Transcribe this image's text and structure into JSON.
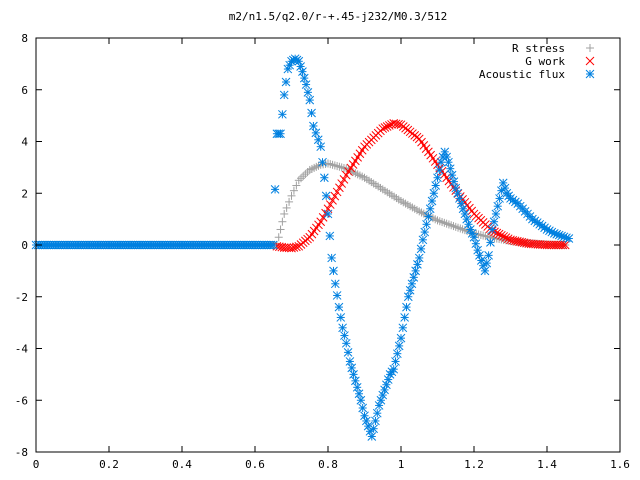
{
  "chart_data": {
    "type": "scatter",
    "title": "m2/n1.5/q2.0/r-+.45-j232/M0.3/512",
    "xlabel": "",
    "ylabel": "",
    "xlim": [
      0,
      1.6
    ],
    "ylim": [
      -8,
      8
    ],
    "xticks": [
      "0",
      "0.2",
      "0.4",
      "0.6",
      "0.8",
      "1",
      "1.2",
      "1.4",
      "1.6"
    ],
    "yticks": [
      "-8",
      "-6",
      "-4",
      "-2",
      "0",
      "2",
      "4",
      "6",
      "8"
    ],
    "grid": false,
    "legend_position": "top-right",
    "series": [
      {
        "name": "R stress",
        "marker": "plus",
        "color": "#a0a0a0",
        "x": [
          0.0,
          0.2,
          0.4,
          0.6,
          0.66,
          0.67,
          0.68,
          0.7,
          0.72,
          0.75,
          0.78,
          0.8,
          0.85,
          0.9,
          0.95,
          1.0,
          1.05,
          1.1,
          1.15,
          1.2,
          1.25,
          1.3,
          1.35,
          1.4,
          1.45
        ],
        "y": [
          0,
          0,
          0,
          0,
          0.0,
          0.6,
          1.2,
          1.9,
          2.5,
          2.9,
          3.1,
          3.15,
          2.95,
          2.6,
          2.15,
          1.7,
          1.3,
          0.95,
          0.7,
          0.45,
          0.28,
          0.15,
          0.07,
          0.02,
          0.0
        ]
      },
      {
        "name": "G work",
        "marker": "cross",
        "color": "#ff0000",
        "x": [
          0.66,
          0.68,
          0.7,
          0.72,
          0.75,
          0.78,
          0.8,
          0.85,
          0.9,
          0.95,
          0.98,
          1.0,
          1.05,
          1.1,
          1.15,
          1.2,
          1.25,
          1.3,
          1.35,
          1.4,
          1.45
        ],
        "y": [
          -0.05,
          -0.1,
          -0.12,
          -0.05,
          0.3,
          0.9,
          1.4,
          2.7,
          3.8,
          4.5,
          4.7,
          4.65,
          4.1,
          3.1,
          2.1,
          1.2,
          0.55,
          0.2,
          0.05,
          0.0,
          0.0
        ]
      },
      {
        "name": "Acoustic flux",
        "marker": "star",
        "color": "#0080e0",
        "x": [
          0.0,
          0.2,
          0.4,
          0.6,
          0.65,
          0.66,
          0.67,
          0.68,
          0.69,
          0.7,
          0.71,
          0.72,
          0.73,
          0.74,
          0.75,
          0.76,
          0.78,
          0.79,
          0.8,
          0.81,
          0.82,
          0.83,
          0.84,
          0.85,
          0.86,
          0.87,
          0.88,
          0.89,
          0.9,
          0.91,
          0.92,
          0.93,
          0.94,
          0.95,
          0.96,
          0.97,
          0.98,
          0.99,
          1.0,
          1.01,
          1.02,
          1.03,
          1.04,
          1.05,
          1.06,
          1.07,
          1.08,
          1.09,
          1.1,
          1.11,
          1.12,
          1.13,
          1.14,
          1.15,
          1.16,
          1.17,
          1.18,
          1.19,
          1.2,
          1.21,
          1.22,
          1.23,
          1.24,
          1.25,
          1.26,
          1.27,
          1.28,
          1.29,
          1.3,
          1.32,
          1.34,
          1.36,
          1.38,
          1.4,
          1.42,
          1.44,
          1.46
        ],
        "y": [
          0,
          0,
          0,
          0,
          0,
          4.3,
          4.3,
          5.8,
          6.8,
          7.1,
          7.2,
          7.1,
          6.7,
          6.2,
          5.6,
          4.6,
          3.8,
          2.6,
          1.2,
          -0.5,
          -1.5,
          -2.4,
          -3.2,
          -3.8,
          -4.5,
          -5.0,
          -5.5,
          -6.0,
          -6.6,
          -7.0,
          -7.4,
          -6.8,
          -6.2,
          -5.8,
          -5.4,
          -5.0,
          -4.8,
          -4.2,
          -3.6,
          -2.8,
          -2.0,
          -1.5,
          -1.0,
          -0.5,
          0.2,
          0.8,
          1.4,
          2.0,
          2.6,
          3.2,
          3.6,
          3.2,
          2.7,
          2.2,
          1.8,
          1.4,
          1.0,
          0.6,
          0.3,
          -0.2,
          -0.6,
          -1.0,
          -0.4,
          0.6,
          1.2,
          1.8,
          2.4,
          2.0,
          1.8,
          1.6,
          1.3,
          1.0,
          0.8,
          0.6,
          0.45,
          0.35,
          0.25
        ]
      }
    ]
  }
}
